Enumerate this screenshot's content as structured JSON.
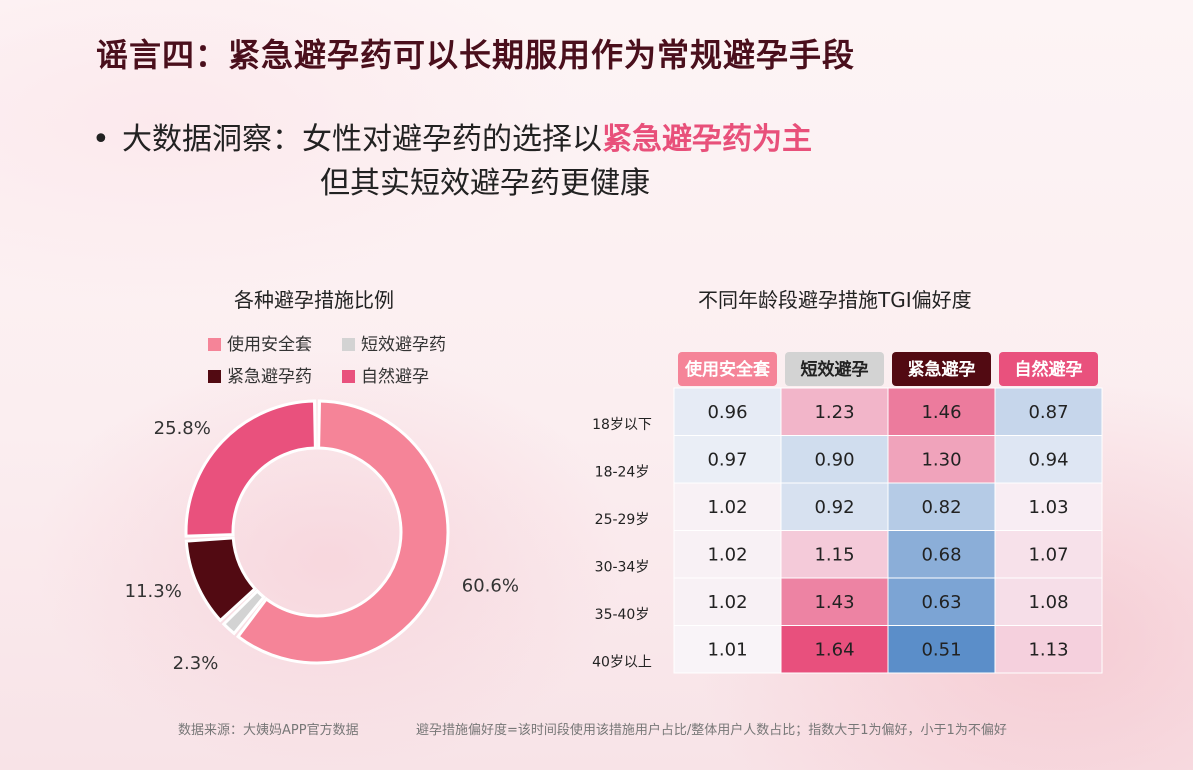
{
  "title": "谣言四：紧急避孕药可以长期服用作为常规避孕手段",
  "insight": {
    "bullet": "•",
    "prefix": "大数据洞察：女性对避孕药的选择以",
    "highlight": "紧急避孕药为主",
    "line2": "但其实短效避孕药更健康"
  },
  "colors": {
    "condom": "#f58498",
    "short_pill": "#d3d3d3",
    "emergency_pill": "#520a12",
    "natural": "#e9517d"
  },
  "chart_data": [
    {
      "type": "pie",
      "title": "各种避孕措施比例",
      "labels": [
        "使用安全套",
        "短效避孕药",
        "紧急避孕药",
        "自然避孕"
      ],
      "values": [
        60.6,
        2.3,
        11.3,
        25.8
      ],
      "value_labels": [
        "60.6%",
        "2.3%",
        "11.3%",
        "25.8%"
      ],
      "legend": "top"
    },
    {
      "type": "heatmap",
      "title": "不同年龄段避孕措施TGI偏好度",
      "columns": [
        "使用安全套",
        "短效避孕",
        "紧急避孕",
        "自然避孕"
      ],
      "rows": [
        "18岁以下",
        "18-24岁",
        "25-29岁",
        "30-34岁",
        "35-40岁",
        "40岁以上"
      ],
      "values": [
        [
          0.96,
          1.23,
          1.46,
          0.87
        ],
        [
          0.97,
          0.9,
          1.3,
          0.94
        ],
        [
          1.02,
          0.92,
          0.82,
          1.03
        ],
        [
          1.02,
          1.15,
          0.68,
          1.07
        ],
        [
          1.02,
          1.43,
          0.63,
          1.08
        ],
        [
          1.01,
          1.64,
          0.51,
          1.13
        ]
      ]
    }
  ],
  "footer": {
    "source": "数据来源：大姨妈APP官方数据",
    "note": "避孕措施偏好度=该时间段使用该措施用户占比/整体用户人数占比；指数大于1为偏好，小于1为不偏好"
  }
}
